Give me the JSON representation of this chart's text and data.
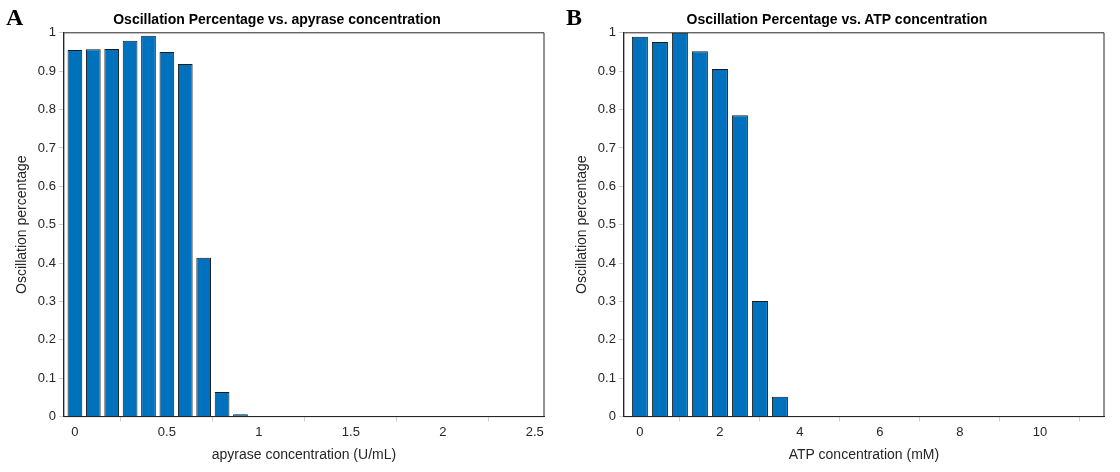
{
  "chart_data": [
    {
      "type": "bar",
      "title": "Oscillation Percentage vs. apyrase concentration",
      "xlabel": "apyrase concentration (U/mL)",
      "ylabel": "Oscillation percentage",
      "annotations": [
        "A"
      ],
      "x": [
        0,
        0.1,
        0.2,
        0.3,
        0.4,
        0.5,
        0.6,
        0.7,
        0.8,
        0.9
      ],
      "values": [
        0.955,
        0.957,
        0.958,
        0.979,
        0.992,
        0.95,
        0.919,
        0.414,
        0.064,
        0.006
      ],
      "color": "#0072bd",
      "xlim": [
        -0.06,
        2.55
      ],
      "xticks": [
        0,
        0.5,
        1,
        1.5,
        2,
        2.5
      ],
      "ylim": [
        0,
        1
      ],
      "yticks": [
        0,
        0.1,
        0.2,
        0.3,
        0.4,
        0.5,
        0.6,
        0.7,
        0.8,
        0.9,
        1
      ],
      "grid": false,
      "legend": false
    },
    {
      "type": "bar",
      "title": "Oscillation Percentage vs. ATP concentration",
      "xlabel": "ATP concentration (mM)",
      "ylabel": "Oscillation percentage",
      "annotations": [
        "B"
      ],
      "x": [
        0,
        0.5,
        1,
        1.5,
        2,
        2.5,
        3,
        3.5
      ],
      "values": [
        0.99,
        0.976,
        1.0,
        0.952,
        0.906,
        0.785,
        0.301,
        0.052
      ],
      "color": "#0072bd",
      "xlim": [
        -0.4,
        11.6
      ],
      "xticks": [
        0,
        2,
        4,
        6,
        8,
        10
      ],
      "ylim": [
        0,
        1
      ],
      "yticks": [
        0,
        0.1,
        0.2,
        0.3,
        0.4,
        0.5,
        0.6,
        0.7,
        0.8,
        0.9,
        1
      ],
      "grid": false,
      "legend": false
    }
  ]
}
